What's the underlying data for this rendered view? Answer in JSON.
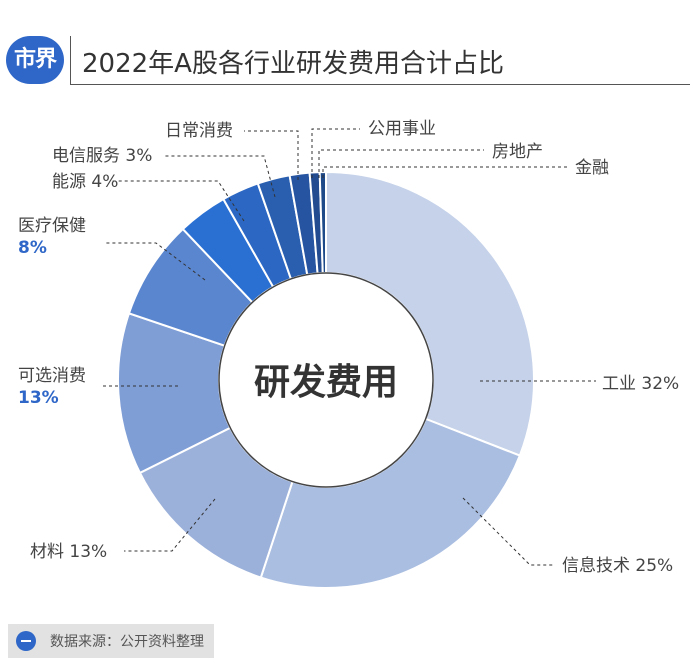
{
  "header": {
    "logo_text": "市界",
    "title": "2022年A股各行业研发费用合计占比"
  },
  "footer": {
    "source": "数据来源：公开资料整理"
  },
  "chart_data": {
    "type": "pie",
    "style": "donut",
    "center_label": "研发费用",
    "title": "2022年A股各行业研发费用合计占比",
    "legend": "none",
    "slices": [
      {
        "name": "工业",
        "value": 32,
        "label": "工业 32%",
        "color": "#c5d2e9"
      },
      {
        "name": "信息技术",
        "value": 25,
        "label": "信息技术 25%",
        "color": "#aabee1"
      },
      {
        "name": "材料",
        "value": 13,
        "label": "材料 13%",
        "color": "#9cb1da"
      },
      {
        "name": "可选消费",
        "value": 13,
        "label_name": "可选消费",
        "label_value": "13%",
        "color": "#7f9ed6"
      },
      {
        "name": "医疗保健",
        "value": 8,
        "label_name": "医疗保健",
        "label_value": "8%",
        "color": "#5a86cf"
      },
      {
        "name": "能源",
        "value": 4,
        "label": "能源 4%",
        "color": "#2a70d3"
      },
      {
        "name": "电信服务",
        "value": 3,
        "label": "电信服务 3%",
        "color": "#2c68c3"
      },
      {
        "name": "日常消费",
        "value": 2.6,
        "label": "日常消费",
        "color": "#2a5fb0"
      },
      {
        "name": "公用事业",
        "value": 1.6,
        "label": "公用事业",
        "color": "#2654a0"
      },
      {
        "name": "房地产",
        "value": 0.8,
        "label": "房地产",
        "color": "#224b90"
      },
      {
        "name": "金融",
        "value": 0.5,
        "label": "金融",
        "color": "#1f4a8a"
      }
    ]
  }
}
